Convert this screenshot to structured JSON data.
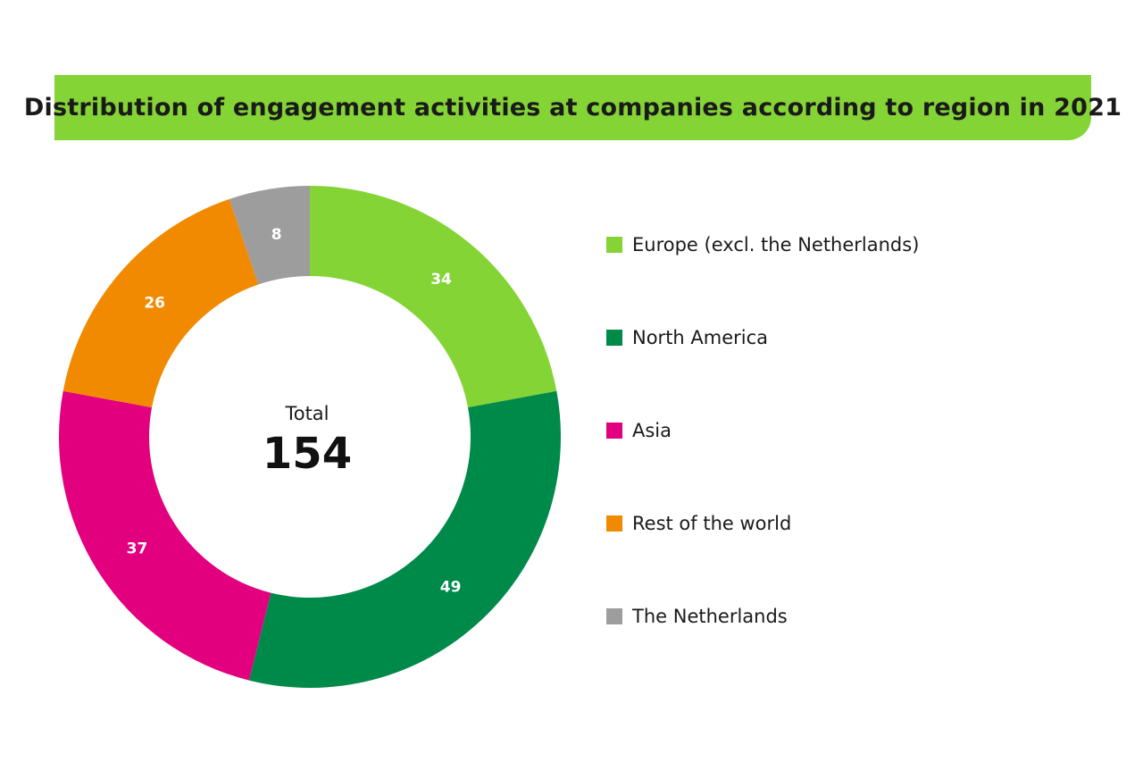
{
  "title": "Distribution of engagement activities at companies according to region in 2021",
  "colors": {
    "title_bar": "#84d435"
  },
  "center": {
    "label": "Total",
    "total": "154"
  },
  "chart_data": {
    "type": "pie",
    "title": "Distribution of engagement activities at companies according to region in 2021",
    "donut": true,
    "total": 154,
    "legend_position": "right",
    "categories": [
      "Europe (excl. the Netherlands)",
      "North America",
      "Asia",
      "Rest of the world",
      "The Netherlands"
    ],
    "values": [
      34,
      49,
      37,
      26,
      8
    ],
    "colors": [
      "#84d435",
      "#008a4a",
      "#e2007f",
      "#f18a00",
      "#9d9d9d"
    ]
  }
}
